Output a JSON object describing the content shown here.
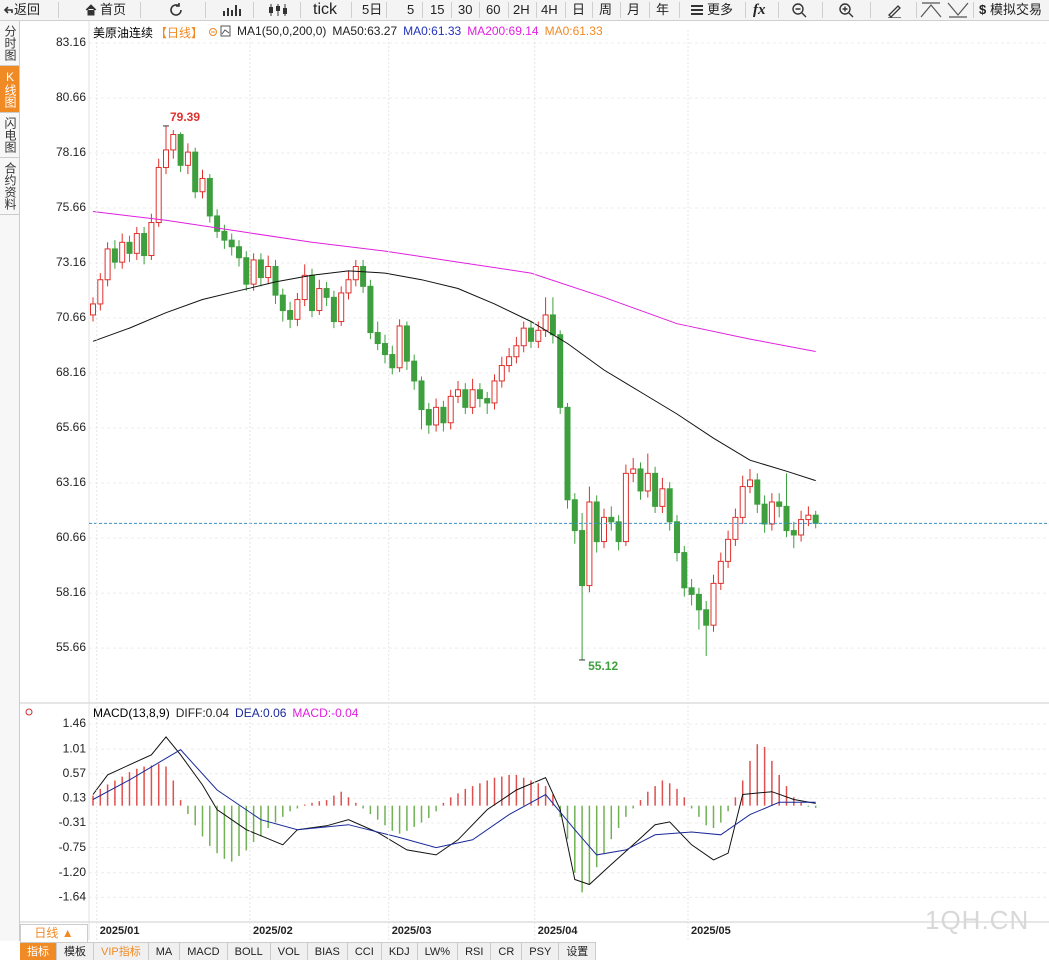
{
  "toolbar": {
    "back": "返回",
    "home": "首页",
    "buttons": [
      "tick",
      "5日",
      "5",
      "15",
      "30",
      "60",
      "2H",
      "4H",
      "日",
      "周",
      "月",
      "年"
    ],
    "more": "更多",
    "formula": "fx",
    "trade": "模拟交易"
  },
  "sidebar": [
    "分时图",
    "K线图",
    "闪电图",
    "合约资料"
  ],
  "period_button": "日线 ▲",
  "tabs": [
    "指标",
    "模板",
    "VIP指标",
    "MA",
    "MACD",
    "BOLL",
    "VOL",
    "BIAS",
    "CCI",
    "KDJ",
    "LW%",
    "RSI",
    "CR",
    "PSY",
    "设置"
  ],
  "watermark": "1QH.CN",
  "chart_data": [
    {
      "type": "candlestick",
      "title": "美原油连续",
      "period": "【日线】",
      "legend": [
        {
          "text": "MA1(50,0,200,0)",
          "color": "#222222"
        },
        {
          "text": "MA50:63.27",
          "color": "#222222"
        },
        {
          "text": "MA0:61.33",
          "color": "#2233bb"
        },
        {
          "text": "MA200:69.14",
          "color": "#e020e0"
        },
        {
          "text": "MA0:61.33",
          "color": "#f08a24"
        }
      ],
      "open": [
        70.8,
        71.3,
        72.4,
        73.8,
        73.2,
        74.1,
        73.6,
        74.5,
        73.5,
        75.0,
        77.5,
        78.3,
        79.0,
        77.6,
        78.2,
        76.4,
        77.0,
        75.3,
        74.6,
        74.2,
        73.9,
        73.4,
        72.2,
        73.3,
        72.5,
        73.0,
        71.7,
        71.0,
        70.6,
        71.5,
        72.6,
        71.0,
        72.0,
        71.6,
        70.5,
        71.8,
        72.4,
        73.0,
        72.1,
        70.0,
        69.5,
        69.0,
        68.4,
        70.3,
        68.7,
        67.8,
        66.5,
        65.8,
        66.6,
        65.9,
        67.1,
        67.4,
        66.6,
        67.4,
        67.0,
        66.8,
        67.8,
        68.5,
        68.9,
        69.4,
        70.2,
        69.6,
        70.1,
        70.8,
        69.9,
        66.6,
        62.4,
        61.0,
        58.5,
        62.3,
        60.5,
        61.6,
        61.4,
        60.5,
        63.6,
        63.8,
        62.8,
        63.6,
        62.1,
        62.9,
        61.4,
        60.0,
        58.4,
        58.1,
        57.4,
        56.7,
        58.6,
        59.6,
        60.6,
        61.6,
        63.0,
        63.3,
        62.2,
        61.3,
        62.3,
        62.1,
        61.0,
        60.8,
        61.5,
        61.7
      ],
      "high": [
        71.6,
        72.7,
        74.1,
        74.2,
        74.5,
        74.4,
        74.8,
        74.8,
        75.4,
        77.9,
        79.39,
        79.2,
        79.1,
        78.6,
        78.4,
        77.4,
        77.2,
        75.6,
        74.9,
        74.5,
        74.2,
        73.7,
        73.6,
        73.6,
        73.5,
        73.3,
        72.0,
        71.4,
        71.8,
        73.1,
        72.9,
        72.4,
        72.3,
        71.9,
        72.1,
        72.8,
        73.3,
        73.3,
        72.4,
        70.5,
        69.9,
        69.4,
        70.6,
        70.5,
        69.0,
        68.0,
        66.8,
        67.0,
        66.9,
        67.4,
        67.8,
        67.7,
        67.9,
        67.7,
        67.3,
        68.1,
        68.9,
        69.3,
        69.8,
        70.5,
        70.5,
        70.5,
        71.6,
        71.6,
        70.1,
        66.8,
        62.7,
        61.8,
        63.0,
        62.6,
        62.0,
        62.1,
        61.7,
        64.0,
        64.3,
        64.1,
        64.5,
        63.9,
        63.4,
        63.2,
        61.7,
        60.3,
        58.8,
        58.4,
        57.8,
        59.0,
        60.0,
        61.0,
        62.0,
        63.5,
        63.8,
        63.6,
        62.6,
        62.7,
        62.7,
        63.6,
        61.4,
        61.9,
        62.1,
        61.9
      ],
      "low": [
        70.5,
        71.0,
        72.1,
        72.9,
        72.9,
        73.2,
        73.3,
        73.1,
        73.3,
        74.8,
        77.2,
        77.9,
        77.3,
        77.2,
        76.1,
        76.1,
        75.0,
        74.3,
        73.8,
        73.5,
        73.0,
        71.9,
        71.9,
        72.1,
        72.2,
        71.3,
        70.5,
        70.2,
        70.3,
        71.2,
        70.7,
        70.8,
        71.2,
        70.2,
        70.3,
        71.5,
        72.1,
        71.8,
        69.7,
        69.2,
        68.6,
        68.1,
        68.2,
        68.3,
        67.4,
        65.6,
        65.4,
        65.5,
        65.5,
        65.6,
        66.8,
        66.3,
        66.3,
        66.6,
        66.3,
        66.5,
        67.5,
        68.2,
        68.6,
        69.1,
        69.3,
        69.3,
        69.8,
        69.5,
        66.3,
        62.0,
        60.4,
        55.12,
        58.2,
        60.0,
        60.2,
        61.0,
        60.1,
        60.3,
        63.2,
        62.4,
        62.5,
        61.8,
        61.8,
        61.0,
        59.6,
        58.0,
        57.6,
        56.5,
        55.3,
        56.4,
        58.3,
        59.3,
        60.3,
        61.3,
        62.7,
        61.8,
        60.9,
        61.0,
        61.6,
        60.7,
        60.2,
        60.5,
        61.2,
        61.1
      ],
      "close": [
        71.3,
        72.4,
        73.8,
        73.2,
        74.1,
        73.6,
        74.5,
        73.5,
        75.0,
        77.5,
        78.3,
        79.0,
        77.6,
        78.2,
        76.4,
        77.0,
        75.3,
        74.6,
        74.2,
        73.9,
        73.4,
        72.2,
        73.3,
        72.5,
        73.0,
        71.7,
        71.0,
        70.6,
        71.5,
        72.6,
        71.0,
        72.0,
        71.6,
        70.5,
        71.8,
        72.4,
        73.0,
        72.1,
        70.0,
        69.5,
        69.0,
        68.4,
        70.3,
        68.7,
        67.8,
        66.5,
        65.8,
        66.6,
        65.9,
        67.1,
        67.4,
        66.6,
        67.4,
        67.0,
        66.8,
        67.8,
        68.5,
        68.9,
        69.4,
        70.2,
        69.6,
        70.1,
        70.8,
        69.9,
        66.6,
        62.4,
        61.0,
        58.5,
        62.3,
        60.5,
        61.6,
        61.4,
        60.5,
        63.6,
        63.8,
        62.8,
        63.6,
        62.1,
        62.9,
        61.4,
        60.0,
        58.4,
        58.1,
        57.4,
        56.7,
        58.6,
        59.6,
        60.6,
        61.6,
        63.0,
        63.3,
        62.2,
        61.3,
        62.3,
        62.1,
        61.0,
        60.8,
        61.5,
        61.7,
        61.33
      ],
      "up_color": "#e0302c",
      "down_color": "#3d9f3d",
      "lines": [
        {
          "color": "#111111",
          "x": [
            0,
            5,
            10,
            15,
            20,
            25,
            30,
            35,
            40,
            45,
            50,
            55,
            60,
            65,
            70,
            75,
            80,
            85,
            90,
            95,
            99
          ],
          "values": [
            69.6,
            70.2,
            70.9,
            71.5,
            71.9,
            72.3,
            72.6,
            72.8,
            72.7,
            72.4,
            72.0,
            71.3,
            70.5,
            69.5,
            68.3,
            67.3,
            66.3,
            65.2,
            64.2,
            63.7,
            63.27
          ]
        },
        {
          "color": "#e020e0",
          "x": [
            0,
            10,
            20,
            30,
            40,
            50,
            60,
            70,
            80,
            90,
            99
          ],
          "values": [
            75.5,
            75.1,
            74.6,
            74.1,
            73.7,
            73.2,
            72.7,
            71.6,
            70.4,
            69.7,
            69.14
          ]
        }
      ],
      "price_line": true,
      "price_line_color": "#3a8fc8",
      "ylim": [
        53.3,
        83.75
      ],
      "yticks": [
        83.16,
        80.66,
        78.16,
        75.66,
        73.16,
        70.66,
        68.16,
        65.66,
        63.16,
        60.66,
        58.16,
        55.66
      ],
      "grid": true
    },
    {
      "type": "macd",
      "title": "MACD(13,8,9)",
      "legend": [
        {
          "text": "DIFF:0.04",
          "color": "#222222"
        },
        {
          "text": "DEA:0.06",
          "color": "#1a2a9a"
        },
        {
          "text": "MACD:-0.04",
          "color": "#e020e0"
        }
      ],
      "categories": [
        null,
        "2025/01",
        null,
        null,
        null,
        null,
        null,
        null,
        null,
        null,
        null,
        null,
        null,
        null,
        null,
        null,
        null,
        null,
        null,
        null,
        null,
        null,
        "2025/02",
        null,
        null,
        null,
        null,
        null,
        null,
        null,
        null,
        null,
        null,
        null,
        null,
        null,
        null,
        null,
        null,
        null,
        null,
        "2025/03",
        null,
        null,
        null,
        null,
        null,
        null,
        null,
        null,
        null,
        null,
        null,
        null,
        null,
        null,
        null,
        null,
        null,
        null,
        null,
        "2025/04",
        null,
        null,
        null,
        null,
        null,
        null,
        null,
        null,
        null,
        null,
        null,
        null,
        null,
        null,
        null,
        null,
        null,
        null,
        null,
        null,
        "2025/05",
        null,
        null,
        null,
        null,
        null,
        null,
        null,
        null,
        null,
        null,
        null,
        null,
        null,
        null,
        null,
        null,
        null
      ],
      "histogram": [
        0.18,
        0.3,
        0.38,
        0.45,
        0.52,
        0.6,
        0.66,
        0.7,
        0.72,
        0.75,
        0.7,
        0.45,
        0.1,
        -0.15,
        -0.35,
        -0.55,
        -0.72,
        -0.85,
        -0.95,
        -1.0,
        -0.9,
        -0.8,
        -0.65,
        -0.55,
        -0.4,
        -0.3,
        -0.2,
        -0.1,
        -0.05,
        0.02,
        0.05,
        0.08,
        0.1,
        0.18,
        0.25,
        0.15,
        0.05,
        -0.05,
        -0.15,
        -0.25,
        -0.35,
        -0.45,
        -0.5,
        -0.45,
        -0.38,
        -0.3,
        -0.22,
        -0.1,
        0.05,
        0.15,
        0.22,
        0.3,
        0.35,
        0.4,
        0.45,
        0.5,
        0.52,
        0.55,
        0.55,
        0.5,
        0.45,
        0.4,
        0.35,
        0.2,
        -0.2,
        -0.6,
        -1.2,
        -1.55,
        -1.4,
        -1.1,
        -0.85,
        -0.6,
        -0.4,
        -0.2,
        -0.05,
        0.1,
        0.25,
        0.35,
        0.45,
        0.4,
        0.3,
        0.15,
        -0.05,
        -0.2,
        -0.35,
        -0.4,
        -0.3,
        -0.1,
        0.15,
        0.45,
        0.8,
        1.1,
        1.05,
        0.8,
        0.55,
        0.35,
        0.15,
        0.05,
        -0.02,
        -0.04
      ],
      "up_color": "#e05050",
      "down_color": "#72b255",
      "lines": [
        {
          "color": "#111111",
          "x": [
            0,
            2,
            5,
            8,
            10,
            12,
            15,
            17,
            21,
            26,
            28,
            32,
            35,
            39,
            43,
            47,
            50,
            54,
            58,
            62,
            64,
            66,
            68,
            71,
            74,
            77,
            79,
            82,
            85,
            87,
            89,
            93,
            96,
            99
          ],
          "values": [
            0.2,
            0.55,
            0.73,
            0.91,
            1.23,
            0.91,
            0.37,
            -0.07,
            -0.43,
            -0.7,
            -0.43,
            -0.36,
            -0.25,
            -0.48,
            -0.79,
            -0.88,
            -0.61,
            -0.07,
            0.28,
            0.5,
            -0.07,
            -1.32,
            -1.41,
            -1.05,
            -0.7,
            -0.34,
            -0.29,
            -0.7,
            -0.97,
            -0.85,
            0.2,
            0.25,
            0.11,
            0.04
          ]
        },
        {
          "color": "#1a2a9a",
          "x": [
            0,
            5,
            12,
            17,
            23,
            28,
            35,
            42,
            47,
            52,
            57,
            62,
            66,
            69,
            73,
            77,
            82,
            86,
            90,
            94,
            99
          ],
          "values": [
            0.11,
            0.46,
            1.0,
            0.28,
            -0.25,
            -0.43,
            -0.34,
            -0.57,
            -0.75,
            -0.61,
            -0.16,
            0.2,
            -0.43,
            -0.88,
            -0.79,
            -0.52,
            -0.47,
            -0.52,
            -0.16,
            0.06,
            0.06
          ]
        }
      ],
      "ylim": [
        -2.08,
        1.8
      ],
      "yticks": [
        1.46,
        1.01,
        0.57,
        0.13,
        -0.31,
        -0.75,
        {
          "value": -1.2,
          "label": "-1.20"
        },
        -1.64
      ],
      "grid": true
    }
  ]
}
